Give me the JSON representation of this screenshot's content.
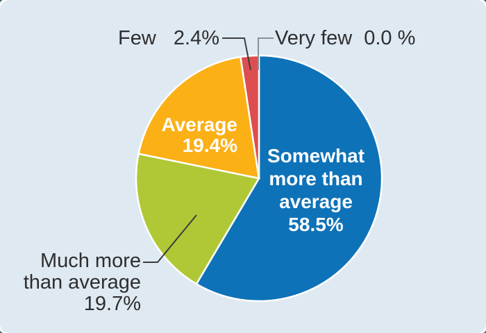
{
  "figure": {
    "background_color": "#dfe9f2",
    "corner_accent_color": "#2e6350",
    "slice_separator_color": "#ffffff",
    "outside_label_color": "#2e2e2e",
    "inside_label_color": "#ffffff",
    "leader_line_color": "#3c3c3c",
    "leader_line_gray_color": "#8a9097"
  },
  "chart_data": {
    "type": "pie",
    "title": "",
    "unit": "%",
    "start_angle_deg": 0,
    "direction": "clockwise",
    "legend_position": "none",
    "segments": [
      {
        "label": "Somewhat more than average",
        "label_lines": [
          "Somewhat",
          "more than",
          "average"
        ],
        "value": 58.5,
        "value_label": "58.5%",
        "color": "#0e72b8",
        "label_color": "#ffffff",
        "label_placement": "inside"
      },
      {
        "label": "Much more than average",
        "label_lines": [
          "Much more",
          "than average"
        ],
        "value": 19.7,
        "value_label": "19.7%",
        "color": "#b0c836",
        "label_color": "#2e2e2e",
        "label_placement": "outside"
      },
      {
        "label": "Average",
        "label_lines": [
          "Average"
        ],
        "value": 19.4,
        "value_label": "19.4%",
        "color": "#fbb016",
        "label_color": "#ffffff",
        "label_placement": "inside"
      },
      {
        "label": "Few",
        "label_lines": [
          "Few"
        ],
        "value": 2.4,
        "value_label": "2.4%",
        "color": "#dc4e4f",
        "label_color": "#2e2e2e",
        "label_placement": "outside"
      },
      {
        "label": "Very few",
        "label_lines": [
          "Very few"
        ],
        "value": 0.0,
        "value_label": "0.0 %",
        "color": null,
        "label_color": "#2e2e2e",
        "label_placement": "outside"
      }
    ]
  }
}
